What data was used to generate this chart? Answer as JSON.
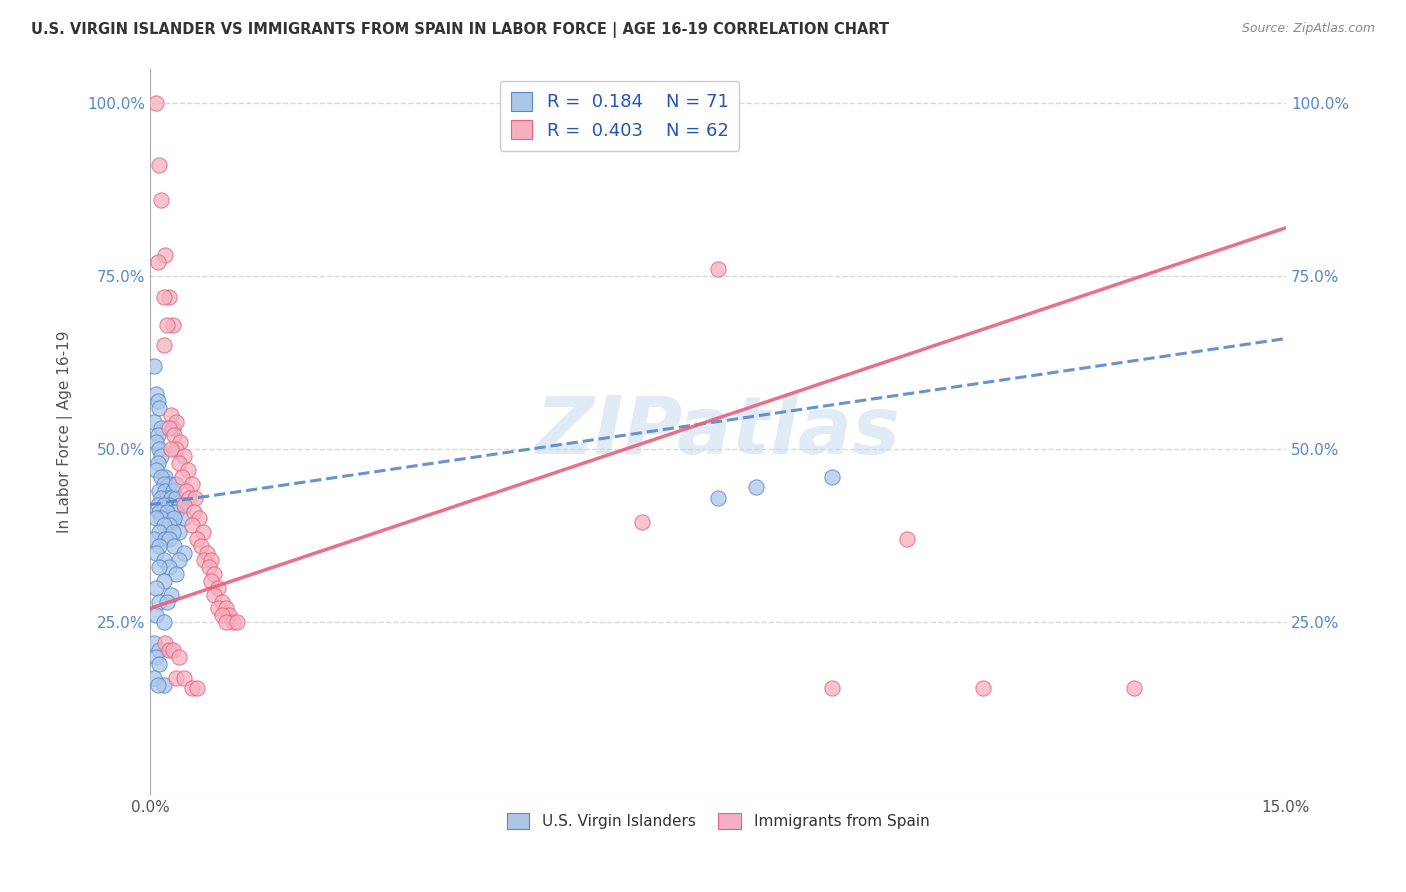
{
  "title": "U.S. VIRGIN ISLANDER VS IMMIGRANTS FROM SPAIN IN LABOR FORCE | AGE 16-19 CORRELATION CHART",
  "source": "Source: ZipAtlas.com",
  "ylabel": "In Labor Force | Age 16-19",
  "xlim": [
    0.0,
    0.15
  ],
  "ylim": [
    0.0,
    1.05
  ],
  "xtick_labels": [
    "0.0%",
    "15.0%"
  ],
  "xtick_positions": [
    0.0,
    0.15
  ],
  "ytick_labels": [
    "25.0%",
    "50.0%",
    "75.0%",
    "100.0%"
  ],
  "ytick_positions": [
    0.25,
    0.5,
    0.75,
    1.0
  ],
  "blue_R": "0.184",
  "blue_N": "71",
  "pink_R": "0.403",
  "pink_N": "62",
  "blue_color": "#adc6e8",
  "pink_color": "#f5afc0",
  "blue_line_color": "#5588cc",
  "pink_line_color": "#e8607a",
  "blue_scatter": [
    [
      0.0005,
      0.62
    ],
    [
      0.0008,
      0.58
    ],
    [
      0.001,
      0.57
    ],
    [
      0.0012,
      0.56
    ],
    [
      0.0005,
      0.54
    ],
    [
      0.0015,
      0.53
    ],
    [
      0.001,
      0.52
    ],
    [
      0.0008,
      0.51
    ],
    [
      0.0012,
      0.5
    ],
    [
      0.0015,
      0.49
    ],
    [
      0.001,
      0.48
    ],
    [
      0.0008,
      0.47
    ],
    [
      0.002,
      0.46
    ],
    [
      0.0015,
      0.46
    ],
    [
      0.0025,
      0.45
    ],
    [
      0.0018,
      0.45
    ],
    [
      0.0012,
      0.44
    ],
    [
      0.002,
      0.44
    ],
    [
      0.003,
      0.44
    ],
    [
      0.0022,
      0.43
    ],
    [
      0.0015,
      0.43
    ],
    [
      0.0028,
      0.43
    ],
    [
      0.0035,
      0.43
    ],
    [
      0.001,
      0.42
    ],
    [
      0.0025,
      0.42
    ],
    [
      0.0018,
      0.42
    ],
    [
      0.004,
      0.42
    ],
    [
      0.003,
      0.41
    ],
    [
      0.0012,
      0.41
    ],
    [
      0.0035,
      0.41
    ],
    [
      0.0022,
      0.41
    ],
    [
      0.0045,
      0.4
    ],
    [
      0.0015,
      0.4
    ],
    [
      0.0032,
      0.4
    ],
    [
      0.0008,
      0.4
    ],
    [
      0.0025,
      0.39
    ],
    [
      0.0018,
      0.39
    ],
    [
      0.0038,
      0.38
    ],
    [
      0.0012,
      0.38
    ],
    [
      0.003,
      0.38
    ],
    [
      0.0005,
      0.37
    ],
    [
      0.002,
      0.37
    ],
    [
      0.0025,
      0.37
    ],
    [
      0.0032,
      0.36
    ],
    [
      0.0012,
      0.36
    ],
    [
      0.0045,
      0.35
    ],
    [
      0.0008,
      0.35
    ],
    [
      0.0018,
      0.34
    ],
    [
      0.0038,
      0.34
    ],
    [
      0.0025,
      0.33
    ],
    [
      0.0012,
      0.33
    ],
    [
      0.0035,
      0.32
    ],
    [
      0.0018,
      0.31
    ],
    [
      0.0008,
      0.3
    ],
    [
      0.0028,
      0.29
    ],
    [
      0.0012,
      0.28
    ],
    [
      0.0022,
      0.28
    ],
    [
      0.0008,
      0.26
    ],
    [
      0.0018,
      0.25
    ],
    [
      0.0005,
      0.22
    ],
    [
      0.0012,
      0.21
    ],
    [
      0.0008,
      0.2
    ],
    [
      0.0012,
      0.19
    ],
    [
      0.0005,
      0.17
    ],
    [
      0.0018,
      0.16
    ],
    [
      0.001,
      0.16
    ],
    [
      0.0035,
      0.45
    ],
    [
      0.003,
      0.53
    ],
    [
      0.08,
      0.445
    ],
    [
      0.09,
      0.46
    ],
    [
      0.075,
      0.43
    ]
  ],
  "pink_scatter": [
    [
      0.0008,
      1.0
    ],
    [
      0.0012,
      0.91
    ],
    [
      0.0015,
      0.86
    ],
    [
      0.002,
      0.78
    ],
    [
      0.001,
      0.77
    ],
    [
      0.0025,
      0.72
    ],
    [
      0.0018,
      0.72
    ],
    [
      0.003,
      0.68
    ],
    [
      0.0022,
      0.68
    ],
    [
      0.0018,
      0.65
    ],
    [
      0.0028,
      0.55
    ],
    [
      0.0035,
      0.54
    ],
    [
      0.0025,
      0.53
    ],
    [
      0.0032,
      0.52
    ],
    [
      0.004,
      0.51
    ],
    [
      0.0035,
      0.5
    ],
    [
      0.0028,
      0.5
    ],
    [
      0.0045,
      0.49
    ],
    [
      0.0038,
      0.48
    ],
    [
      0.005,
      0.47
    ],
    [
      0.0042,
      0.46
    ],
    [
      0.0055,
      0.45
    ],
    [
      0.0048,
      0.44
    ],
    [
      0.0052,
      0.43
    ],
    [
      0.006,
      0.43
    ],
    [
      0.0045,
      0.42
    ],
    [
      0.0058,
      0.41
    ],
    [
      0.0065,
      0.4
    ],
    [
      0.0055,
      0.39
    ],
    [
      0.007,
      0.38
    ],
    [
      0.0062,
      0.37
    ],
    [
      0.0068,
      0.36
    ],
    [
      0.0075,
      0.35
    ],
    [
      0.0072,
      0.34
    ],
    [
      0.008,
      0.34
    ],
    [
      0.0078,
      0.33
    ],
    [
      0.0085,
      0.32
    ],
    [
      0.008,
      0.31
    ],
    [
      0.009,
      0.3
    ],
    [
      0.0085,
      0.29
    ],
    [
      0.0095,
      0.28
    ],
    [
      0.009,
      0.27
    ],
    [
      0.01,
      0.27
    ],
    [
      0.0105,
      0.26
    ],
    [
      0.0095,
      0.26
    ],
    [
      0.011,
      0.25
    ],
    [
      0.01,
      0.25
    ],
    [
      0.0115,
      0.25
    ],
    [
      0.002,
      0.22
    ],
    [
      0.0025,
      0.21
    ],
    [
      0.003,
      0.21
    ],
    [
      0.0038,
      0.2
    ],
    [
      0.0035,
      0.17
    ],
    [
      0.0045,
      0.17
    ],
    [
      0.0055,
      0.155
    ],
    [
      0.0062,
      0.155
    ],
    [
      0.065,
      0.395
    ],
    [
      0.075,
      0.76
    ],
    [
      0.11,
      0.155
    ],
    [
      0.13,
      0.155
    ],
    [
      0.1,
      0.37
    ],
    [
      0.09,
      0.155
    ]
  ],
  "watermark": "ZIPatlas",
  "background_color": "#ffffff",
  "grid_color": "#d8d8d8"
}
